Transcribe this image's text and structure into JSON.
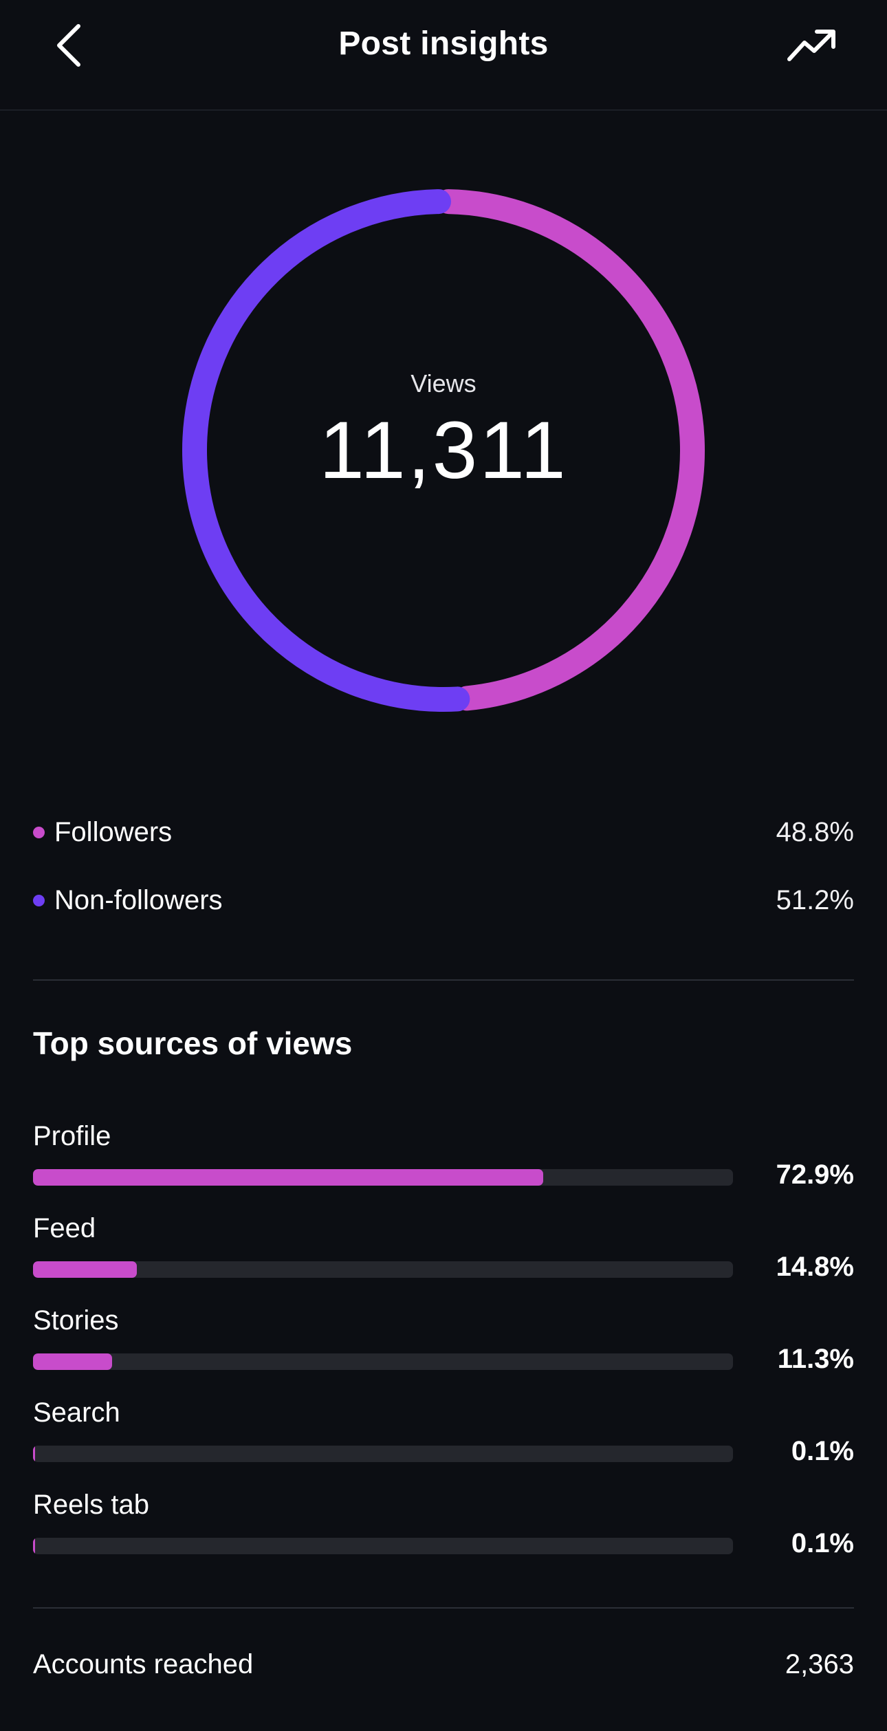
{
  "header": {
    "title": "Post insights",
    "back_icon": "chevron-left-icon",
    "trend_icon": "trending-up-icon"
  },
  "colors": {
    "background": "#0c0e13",
    "followers": "#c84ccb",
    "non_followers": "#6e3ef3",
    "track": "#25272d"
  },
  "views": {
    "label": "Views",
    "value": "11,311"
  },
  "audience": [
    {
      "label": "Followers",
      "value": "48.8%",
      "fraction": 0.488
    },
    {
      "label": "Non-followers",
      "value": "51.2%",
      "fraction": 0.512
    }
  ],
  "sources": {
    "title": "Top sources of views",
    "items": [
      {
        "label": "Profile",
        "value": "72.9%",
        "fraction": 0.729
      },
      {
        "label": "Feed",
        "value": "14.8%",
        "fraction": 0.148
      },
      {
        "label": "Stories",
        "value": "11.3%",
        "fraction": 0.113
      },
      {
        "label": "Search",
        "value": "0.1%",
        "fraction": 0.001
      },
      {
        "label": "Reels tab",
        "value": "0.1%",
        "fraction": 0.001
      }
    ]
  },
  "accounts_reached": {
    "label": "Accounts reached",
    "value": "2,363"
  }
}
